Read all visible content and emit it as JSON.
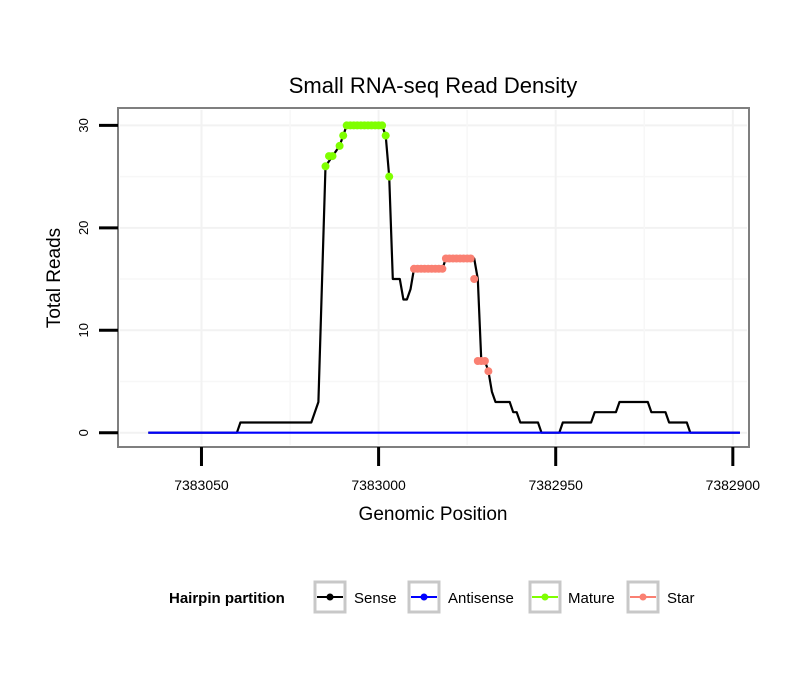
{
  "chart_data": {
    "type": "line",
    "title": "Small RNA-seq Read Density",
    "xlabel": "Genomic Position",
    "ylabel": "Total Reads",
    "x_reversed": true,
    "xlim": [
      7383073,
      7382896
    ],
    "ylim": [
      -1.2,
      31.5
    ],
    "x_ticks": [
      7383050,
      7383000,
      7382950,
      7382900
    ],
    "x_tick_labels": [
      "7383050",
      "7383000",
      "7382950",
      "7382900"
    ],
    "y_ticks": [
      0,
      10,
      20,
      30
    ],
    "y_tick_labels": [
      "0",
      "10",
      "20",
      "30"
    ],
    "grid": true,
    "legend": {
      "position": "bottom",
      "title": "Hairpin partition",
      "entries": [
        "Sense",
        "Antisense",
        "Mature",
        "Star"
      ]
    },
    "colors": {
      "Sense": "#000000",
      "Antisense": "#0000ff",
      "Mature": "#7fff00",
      "Star": "#fa8072"
    },
    "series": [
      {
        "name": "Sense",
        "style": "line",
        "x": [
          7383065,
          7383040,
          7383039,
          7383019,
          7383017,
          7383015,
          7383013,
          7383011,
          7383010,
          7383009,
          7383008,
          7383007,
          7383004,
          7383003,
          7383002,
          7383001,
          7382999,
          7382998,
          7382997,
          7382996,
          7382994,
          7382993,
          7382992,
          7382991,
          7382990,
          7382989,
          7382988,
          7382987,
          7382986,
          7382985,
          7382984,
          7382983,
          7382982,
          7382981,
          7382980,
          7382979,
          7382978,
          7382977,
          7382976,
          7382975,
          7382974,
          7382973,
          7382972,
          7382971,
          7382970,
          7382969,
          7382968,
          7382967,
          7382966,
          7382965,
          7382964,
          7382963,
          7382962,
          7382961,
          7382960,
          7382959,
          7382958,
          7382957,
          7382956,
          7382955,
          7382954,
          7382953,
          7382952,
          7382951,
          7382950,
          7382949,
          7382948,
          7382947,
          7382946,
          7382945,
          7382944,
          7382943,
          7382942,
          7382941,
          7382940,
          7382939,
          7382938,
          7382937,
          7382936,
          7382935,
          7382934,
          7382933,
          7382932,
          7382931,
          7382930,
          7382929,
          7382928,
          7382927,
          7382926,
          7382925,
          7382924,
          7382923,
          7382922,
          7382921,
          7382920,
          7382919,
          7382918,
          7382917,
          7382916,
          7382915,
          7382914,
          7382913,
          7382912,
          7382911,
          7382910,
          7382909,
          7382908,
          7382907,
          7382906,
          7382905,
          7382904,
          7382903,
          7382902,
          7382901,
          7382900,
          7382899,
          7382898
        ],
        "y": [
          0,
          0,
          1,
          1,
          3,
          26,
          27,
          28,
          29,
          30,
          30,
          30,
          30,
          30,
          30,
          30,
          30,
          29,
          25,
          15,
          15,
          13,
          13,
          14,
          16,
          16,
          16,
          16,
          16,
          16,
          16,
          16,
          16,
          17,
          17,
          17,
          17,
          17,
          17,
          17,
          17,
          17,
          15,
          7,
          7,
          6,
          4,
          3,
          3,
          3,
          3,
          3,
          2,
          2,
          1,
          1,
          1,
          1,
          1,
          1,
          0,
          0,
          0,
          0,
          0,
          0,
          1,
          1,
          1,
          1,
          1,
          1,
          1,
          1,
          1,
          2,
          2,
          2,
          2,
          2,
          2,
          2,
          3,
          3,
          3,
          3,
          3,
          3,
          3,
          3,
          3,
          2,
          2,
          2,
          2,
          2,
          1,
          1,
          1,
          1,
          1,
          1,
          0,
          0,
          0,
          0,
          0,
          0,
          0,
          0,
          0,
          0,
          0,
          0,
          0,
          0,
          0
        ]
      },
      {
        "name": "Antisense",
        "style": "line",
        "x": [
          7383065,
          7382898
        ],
        "y": [
          0,
          0
        ]
      },
      {
        "name": "Mature",
        "style": "points",
        "x": [
          7383015,
          7383014,
          7383013,
          7383011,
          7383010,
          7383009,
          7383008,
          7383007,
          7383006,
          7383005,
          7383004,
          7383003,
          7383002,
          7383001,
          7383000,
          7382999,
          7382998,
          7382997
        ],
        "y": [
          26,
          27,
          27,
          28,
          29,
          30,
          30,
          30,
          30,
          30,
          30,
          30,
          30,
          30,
          30,
          30,
          29,
          25
        ]
      },
      {
        "name": "Star",
        "style": "points",
        "x": [
          7382990,
          7382989,
          7382988,
          7382987,
          7382986,
          7382985,
          7382984,
          7382983,
          7382982,
          7382981,
          7382980,
          7382979,
          7382978,
          7382977,
          7382976,
          7382975,
          7382974,
          7382973,
          7382972,
          7382971,
          7382970,
          7382969
        ],
        "y": [
          16,
          16,
          16,
          16,
          16,
          16,
          16,
          16,
          16,
          17,
          17,
          17,
          17,
          17,
          17,
          17,
          17,
          15,
          7,
          7,
          7,
          6
        ]
      }
    ]
  }
}
